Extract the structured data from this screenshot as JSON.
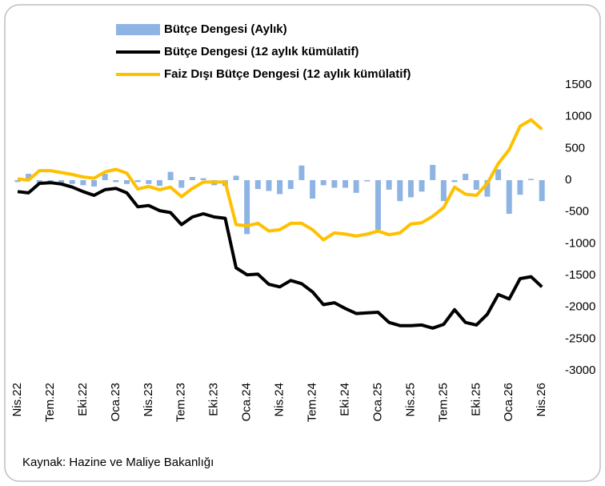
{
  "chart_data": {
    "type": "combo",
    "categories": [
      "Nis.22",
      null,
      null,
      "Tem.22",
      null,
      null,
      "Eki.22",
      null,
      null,
      "Oca.23",
      null,
      null,
      "Nis.23",
      null,
      null,
      "Tem.23",
      null,
      null,
      "Eki.23",
      null,
      null,
      "Oca.24",
      null,
      null,
      "Nis.24",
      null,
      null,
      "Tem.24",
      null,
      null,
      "Eki.24",
      null,
      null,
      "Oca.25",
      null,
      null,
      "Nis.25",
      null,
      null,
      "Tem.25",
      null,
      null,
      "Eki.25",
      null,
      null,
      "Oca.26",
      null,
      null,
      "Nis.26"
    ],
    "series": [
      {
        "name": "Bütçe Dengesi (Aylık)",
        "type": "bar",
        "color": "#8eb4e3",
        "values": [
          -30,
          100,
          -70,
          -40,
          -50,
          -60,
          -80,
          -100,
          100,
          -30,
          -60,
          -30,
          -60,
          -90,
          130,
          -120,
          50,
          30,
          -80,
          -90,
          70,
          -850,
          -140,
          -170,
          -220,
          -140,
          230,
          -290,
          -80,
          -120,
          -120,
          -200,
          -20,
          -780,
          -150,
          -330,
          -270,
          -180,
          240,
          -330,
          -30,
          100,
          -150,
          -260,
          170,
          -530,
          -230,
          20,
          -330
        ]
      },
      {
        "name": "Bütçe Dengesi (12 aylık kümülatif)",
        "type": "line",
        "color": "#000000",
        "values": [
          -180,
          -200,
          -50,
          -40,
          -60,
          -110,
          -180,
          -240,
          -150,
          -130,
          -200,
          -420,
          -400,
          -480,
          -510,
          -700,
          -580,
          -530,
          -580,
          -600,
          -1380,
          -1490,
          -1480,
          -1640,
          -1680,
          -1580,
          -1630,
          -1760,
          -1960,
          -1930,
          -2020,
          -2100,
          -2090,
          -2080,
          -2240,
          -2290,
          -2290,
          -2280,
          -2330,
          -2270,
          -2040,
          -2240,
          -2280,
          -2110,
          -1800,
          -1870,
          -1550,
          -1520,
          -1680
        ]
      },
      {
        "name": "Faiz Dışı Bütçe Dengesi (12 aylık kümülatif)",
        "type": "line",
        "color": "#ffc000",
        "values": [
          20,
          0,
          150,
          150,
          120,
          90,
          50,
          30,
          130,
          170,
          110,
          -140,
          -100,
          -150,
          -110,
          -260,
          -130,
          -30,
          -30,
          -30,
          -700,
          -720,
          -680,
          -800,
          -780,
          -680,
          -680,
          -780,
          -940,
          -830,
          -850,
          -880,
          -850,
          -800,
          -860,
          -830,
          -690,
          -670,
          -570,
          -430,
          -110,
          -220,
          -240,
          -50,
          260,
          480,
          850,
          950,
          800
        ]
      }
    ],
    "ylim": [
      -3000,
      1500
    ],
    "yticks": [
      -3000,
      -2500,
      -2000,
      -1500,
      -1000,
      -500,
      0,
      500,
      1000,
      1500
    ],
    "legend": "top-left",
    "grid": false,
    "source": "Kaynak: Hazine ve Maliye Bakanlığı"
  }
}
